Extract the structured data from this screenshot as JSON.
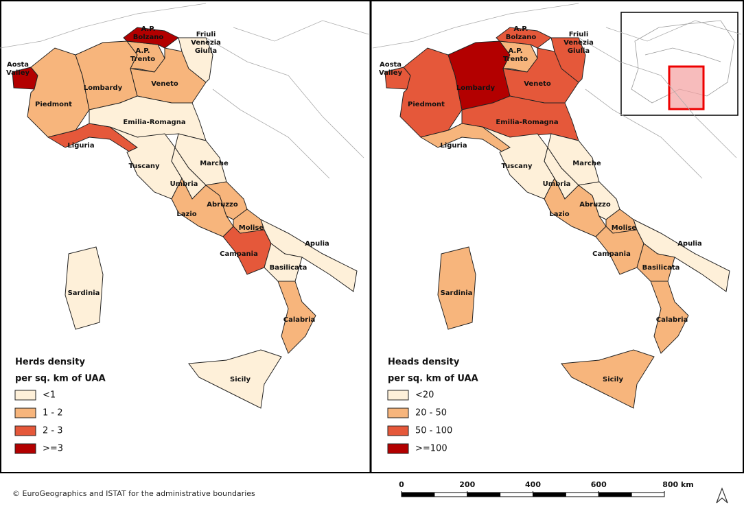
{
  "maps": [
    {
      "legend": {
        "title": [
          "Herds density",
          "per sq. km of UAA"
        ],
        "items": [
          {
            "label": "<1",
            "color": "#fef0d9"
          },
          {
            "label": "1 - 2",
            "color": "#f7b57c"
          },
          {
            "label": "2 - 3",
            "color": "#e5583a"
          },
          {
            "label": ">=3",
            "color": "#b30000"
          }
        ]
      },
      "regions": [
        {
          "label": [
            "Aosta",
            "Valley"
          ],
          "class": ">=3"
        },
        {
          "label": [
            "Piedmont"
          ],
          "class": "1 - 2"
        },
        {
          "label": [
            "Lombardy"
          ],
          "class": "1 - 2"
        },
        {
          "label": [
            "A.P.",
            "Trento"
          ],
          "class": "1 - 2"
        },
        {
          "label": [
            "A.P.",
            "Bolzano"
          ],
          "class": ">=3"
        },
        {
          "label": [
            "Veneto"
          ],
          "class": "1 - 2"
        },
        {
          "label": [
            "Friuli",
            "Venezia",
            "Giulia"
          ],
          "class": "<1"
        },
        {
          "label": [
            "Liguria"
          ],
          "class": "2 - 3"
        },
        {
          "label": [
            "Emilia-Romagna"
          ],
          "class": "<1"
        },
        {
          "label": [
            "Tuscany"
          ],
          "class": "<1"
        },
        {
          "label": [
            "Marche"
          ],
          "class": "<1"
        },
        {
          "label": [
            "Umbria"
          ],
          "class": "<1"
        },
        {
          "label": [
            "Lazio"
          ],
          "class": "1 - 2"
        },
        {
          "label": [
            "Abruzzo"
          ],
          "class": "1 - 2"
        },
        {
          "label": [
            "Molise"
          ],
          "class": "1 - 2"
        },
        {
          "label": [
            "Campania"
          ],
          "class": "2 - 3"
        },
        {
          "label": [
            "Apulia"
          ],
          "class": "<1"
        },
        {
          "label": [
            "Basilicata"
          ],
          "class": "<1"
        },
        {
          "label": [
            "Calabria"
          ],
          "class": "1 - 2"
        },
        {
          "label": [
            "Sicily"
          ],
          "class": "<1"
        },
        {
          "label": [
            "Sardinia"
          ],
          "class": "<1"
        }
      ]
    },
    {
      "legend": {
        "title": [
          "Heads density",
          "per sq. km of UAA"
        ],
        "items": [
          {
            "label": "<20",
            "color": "#fef0d9"
          },
          {
            "label": "20 - 50",
            "color": "#f7b57c"
          },
          {
            "label": "50 - 100",
            "color": "#e5583a"
          },
          {
            "label": ">=100",
            "color": "#b30000"
          }
        ]
      },
      "regions": [
        {
          "label": [
            "Aosta",
            "Valley"
          ],
          "class": "50 - 100"
        },
        {
          "label": [
            "Piedmont"
          ],
          "class": "50 - 100"
        },
        {
          "label": [
            "Lombardy"
          ],
          "class": ">=100"
        },
        {
          "label": [
            "A.P.",
            "Trento"
          ],
          "class": "20 - 50"
        },
        {
          "label": [
            "A.P.",
            "Bolzano"
          ],
          "class": "50 - 100"
        },
        {
          "label": [
            "Veneto"
          ],
          "class": "50 - 100"
        },
        {
          "label": [
            "Friuli",
            "Venezia",
            "Giulia"
          ],
          "class": "50 - 100"
        },
        {
          "label": [
            "Liguria"
          ],
          "class": "20 - 50"
        },
        {
          "label": [
            "Emilia-Romagna"
          ],
          "class": "50 - 100"
        },
        {
          "label": [
            "Tuscany"
          ],
          "class": "<20"
        },
        {
          "label": [
            "Marche"
          ],
          "class": "<20"
        },
        {
          "label": [
            "Umbria"
          ],
          "class": "<20"
        },
        {
          "label": [
            "Lazio"
          ],
          "class": "20 - 50"
        },
        {
          "label": [
            "Abruzzo"
          ],
          "class": "<20"
        },
        {
          "label": [
            "Molise"
          ],
          "class": "20 - 50"
        },
        {
          "label": [
            "Campania"
          ],
          "class": "20 - 50"
        },
        {
          "label": [
            "Apulia"
          ],
          "class": "<20"
        },
        {
          "label": [
            "Basilicata"
          ],
          "class": "20 - 50"
        },
        {
          "label": [
            "Calabria"
          ],
          "class": "20 - 50"
        },
        {
          "label": [
            "Sicily"
          ],
          "class": "20 - 50"
        },
        {
          "label": [
            "Sardinia"
          ],
          "class": "20 - 50"
        }
      ]
    }
  ],
  "copyright": "© EuroGeographics and ISTAT for the administrative boundaries",
  "scale_bar": {
    "ticks": [
      0,
      200,
      400,
      600,
      {
        "value": 800,
        "label": "800 km"
      }
    ]
  }
}
